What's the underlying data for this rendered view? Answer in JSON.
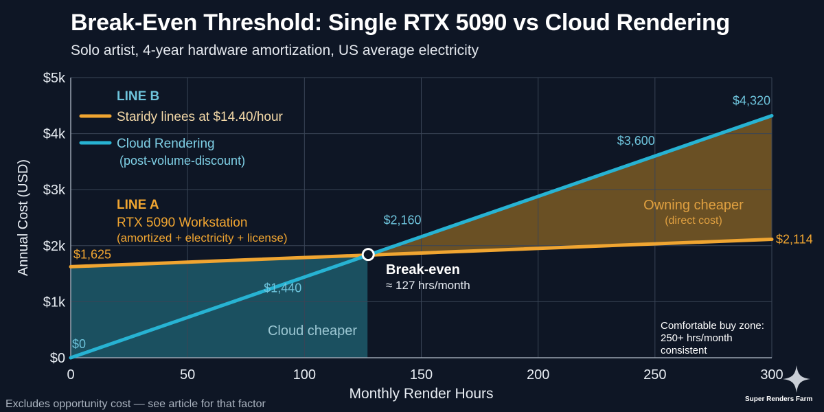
{
  "title": "Break-Even Threshold: Single RTX 5090 vs Cloud Rendering",
  "subtitle": "Solo artist, 4-year hardware amortization, US average electricity",
  "footnote": "Excludes opportunity cost — see article for that factor",
  "brand": "Super Renders Farm",
  "colors": {
    "background": "#0e1625",
    "line_a": "#f0a531",
    "line_b": "#27b3d3",
    "cloud_region": "#1d5a6b",
    "owning_region": "#7a5a24",
    "grid": "#3a4556"
  },
  "chart_data": {
    "type": "line",
    "xlabel": "Monthly Render Hours",
    "ylabel": "Annual Cost (USD)",
    "xlim": [
      0,
      300
    ],
    "ylim": [
      0,
      5000
    ],
    "x_ticks": [
      0,
      50,
      100,
      150,
      200,
      250,
      300
    ],
    "x_tick_labels": [
      "0",
      "50",
      "100",
      "150",
      "200",
      "250",
      "300"
    ],
    "y_ticks": [
      0,
      1000,
      2000,
      3000,
      4000,
      5000
    ],
    "y_tick_labels": [
      "$0",
      "$1k",
      "$2k",
      "$3k",
      "$4k",
      "$5k"
    ],
    "grid": true,
    "series": [
      {
        "id": "line_a",
        "heading": "LINE A",
        "name": "RTX 5090 Workstation",
        "detail": "(amortized + electricity + license)",
        "color": "#f0a531",
        "x": [
          0,
          300
        ],
        "y": [
          1625,
          2114
        ]
      },
      {
        "id": "line_b",
        "heading": "LINE B",
        "name": "Cloud Rendering",
        "detail": "(post-volume-discount)",
        "color": "#27b3d3",
        "x": [
          0,
          300
        ],
        "y": [
          0,
          4320
        ]
      }
    ],
    "legend": {
      "heading": "LINE B",
      "items": [
        {
          "label": "Staridy linees at $14.40/hour",
          "color": "#f0a531"
        },
        {
          "label": "Cloud Rendering",
          "sub": "(post-volume-discount)",
          "color": "#27b3d3"
        }
      ],
      "position": "top-left"
    },
    "point_labels": [
      {
        "series": "line_a",
        "x": 0,
        "y": 1625,
        "text": "$1,625"
      },
      {
        "series": "line_a",
        "x": 300,
        "y": 2114,
        "text": "$2,114"
      },
      {
        "series": "line_b",
        "x": 0,
        "y": 0,
        "text": "$0"
      },
      {
        "series": "line_b",
        "x": 100,
        "y": 1440,
        "text": "$1,440"
      },
      {
        "series": "line_b",
        "x": 150,
        "y": 2160,
        "text": "$2,160"
      },
      {
        "series": "line_b",
        "x": 250,
        "y": 3600,
        "text": "$3,600"
      },
      {
        "series": "line_b",
        "x": 300,
        "y": 4320,
        "text": "$4,320"
      }
    ],
    "break_even": {
      "x": 127,
      "y": 1830,
      "label": "Break-even",
      "sublabel": "≈ 127 hrs/month"
    },
    "regions": [
      {
        "id": "cloud",
        "label": "Cloud cheaper",
        "x_range": [
          0,
          127
        ]
      },
      {
        "id": "owning",
        "label": "Owning cheaper",
        "sublabel": "(direct cost)",
        "x_range": [
          127,
          300
        ]
      }
    ],
    "annotations": [
      {
        "id": "line_a_label",
        "heading": "LINE A",
        "lines": [
          "RTX 5090 Workstation",
          "(amortized + electricity + license)"
        ]
      },
      {
        "id": "buy_zone",
        "lines": [
          "Comfortable buy zone:",
          "250+ hrs/month",
          "consistent"
        ]
      }
    ]
  }
}
